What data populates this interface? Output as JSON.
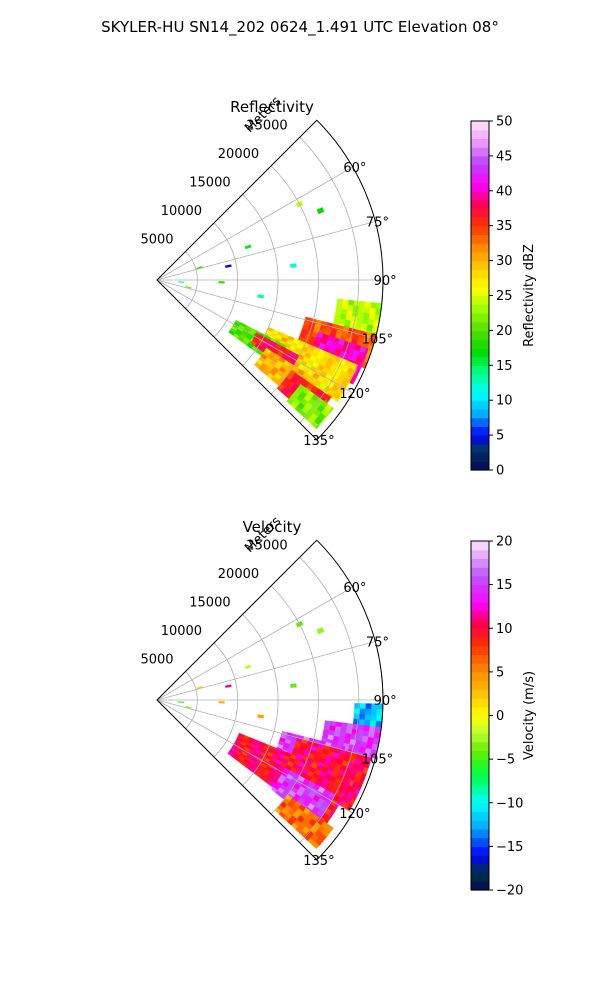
{
  "figure": {
    "suptitle": "SKYLER-HU  SN14_202  0624_1.491 UTC Elevation 08°"
  },
  "chart_data": [
    {
      "type": "heatmap",
      "subtype": "polar-sector-radar-ppi",
      "title": "Reflectivity",
      "radial_label": "Meters",
      "r_range": [
        0,
        28000
      ],
      "r_ticks": [
        5000,
        10000,
        15000,
        20000,
        25000
      ],
      "r_tick_labels": [
        "5000",
        "10000",
        "15000",
        "20000",
        "25000"
      ],
      "theta_range_deg": [
        45,
        135
      ],
      "theta_ticks": [
        60,
        75,
        90,
        105,
        120,
        135
      ],
      "theta_tick_labels": [
        "60°",
        "75°",
        "90°",
        "105°",
        "120°",
        "135°"
      ],
      "grid": true,
      "colorbar": {
        "label": "Reflectivity dBZ",
        "range": [
          0,
          50
        ],
        "ticks": [
          0,
          5,
          10,
          15,
          20,
          25,
          30,
          35,
          40,
          45,
          50
        ],
        "tick_labels": [
          "0",
          "5",
          "10",
          "15",
          "20",
          "25",
          "30",
          "35",
          "40",
          "45",
          "50"
        ],
        "placement": "right"
      },
      "echo_regions": [
        {
          "theta": [
            96,
            104
          ],
          "r": [
            22500,
            28000
          ],
          "value": 24
        },
        {
          "theta": [
            104,
            113
          ],
          "r": [
            19000,
            28000
          ],
          "value": 34
        },
        {
          "theta": [
            108,
            118
          ],
          "r": [
            21000,
            27500
          ],
          "value": 40
        },
        {
          "theta": [
            113,
            124
          ],
          "r": [
            15000,
            27000
          ],
          "value": 28
        },
        {
          "theta": [
            117,
            126
          ],
          "r": [
            11000,
            18000
          ],
          "value": 20
        },
        {
          "theta": [
            118,
            124
          ],
          "r": [
            14000,
            20000
          ],
          "value": 37
        },
        {
          "theta": [
            122,
            131
          ],
          "r": [
            16000,
            23000
          ],
          "value": 30
        },
        {
          "theta": [
            124,
            132
          ],
          "r": [
            20000,
            26000
          ],
          "value": 36
        },
        {
          "theta": [
            126,
            133
          ],
          "r": [
            22000,
            27000
          ],
          "value": 22
        }
      ],
      "scatter_echoes": [
        {
          "theta": 62,
          "r": 20000,
          "value": 24
        },
        {
          "theta": 67,
          "r": 22000,
          "value": 17
        },
        {
          "theta": 70,
          "r": 12000,
          "value": 16
        },
        {
          "theta": 74,
          "r": 5500,
          "value": 19
        },
        {
          "theta": 79,
          "r": 9000,
          "value": 5
        },
        {
          "theta": 84,
          "r": 17000,
          "value": 12
        },
        {
          "theta": 95,
          "r": 3000,
          "value": 14
        },
        {
          "theta": 99,
          "r": 13000,
          "value": 13
        },
        {
          "theta": 103,
          "r": 4000,
          "value": 22
        },
        {
          "theta": 92,
          "r": 8000,
          "value": 19
        }
      ]
    },
    {
      "type": "heatmap",
      "subtype": "polar-sector-radar-ppi",
      "title": "Velocity",
      "radial_label": "Meters",
      "r_range": [
        0,
        28000
      ],
      "r_ticks": [
        5000,
        10000,
        15000,
        20000,
        25000
      ],
      "r_tick_labels": [
        "5000",
        "10000",
        "15000",
        "20000",
        "25000"
      ],
      "theta_range_deg": [
        45,
        135
      ],
      "theta_ticks": [
        60,
        75,
        90,
        105,
        120,
        135
      ],
      "theta_tick_labels": [
        "60°",
        "75°",
        "90°",
        "105°",
        "120°",
        "135°"
      ],
      "grid": true,
      "colorbar": {
        "label": "Velocity (m/s)",
        "range": [
          -20,
          20
        ],
        "ticks": [
          -20,
          -15,
          -10,
          -5,
          0,
          5,
          10,
          15,
          20
        ],
        "tick_labels": [
          "−20",
          "−15",
          "−10",
          "−5",
          "0",
          "5",
          "10",
          "15",
          "20"
        ],
        "placement": "right"
      },
      "echo_regions": [
        {
          "theta": [
            91,
            97
          ],
          "r": [
            24500,
            28000
          ],
          "value": -12
        },
        {
          "theta": [
            97,
            105
          ],
          "r": [
            21000,
            28000
          ],
          "value": 15
        },
        {
          "theta": [
            104,
            112
          ],
          "r": [
            16000,
            24000
          ],
          "value": 15
        },
        {
          "theta": [
            105,
            120
          ],
          "r": [
            18000,
            27500
          ],
          "value": 10
        },
        {
          "theta": [
            112,
            127
          ],
          "r": [
            11000,
            26000
          ],
          "value": 10
        },
        {
          "theta": [
            118,
            128
          ],
          "r": [
            18000,
            25000
          ],
          "value": 15
        },
        {
          "theta": [
            126,
            133
          ],
          "r": [
            20000,
            27000
          ],
          "value": 6
        }
      ],
      "scatter_echoes": [
        {
          "theta": 62,
          "r": 20000,
          "value": -4
        },
        {
          "theta": 67,
          "r": 22000,
          "value": -3
        },
        {
          "theta": 70,
          "r": 12000,
          "value": -2
        },
        {
          "theta": 74,
          "r": 5500,
          "value": 2
        },
        {
          "theta": 79,
          "r": 9000,
          "value": 11
        },
        {
          "theta": 84,
          "r": 17000,
          "value": -4
        },
        {
          "theta": 95,
          "r": 3000,
          "value": -5
        },
        {
          "theta": 99,
          "r": 13000,
          "value": 4
        },
        {
          "theta": 103,
          "r": 4000,
          "value": -3
        },
        {
          "theta": 92,
          "r": 8000,
          "value": 3
        }
      ]
    }
  ]
}
